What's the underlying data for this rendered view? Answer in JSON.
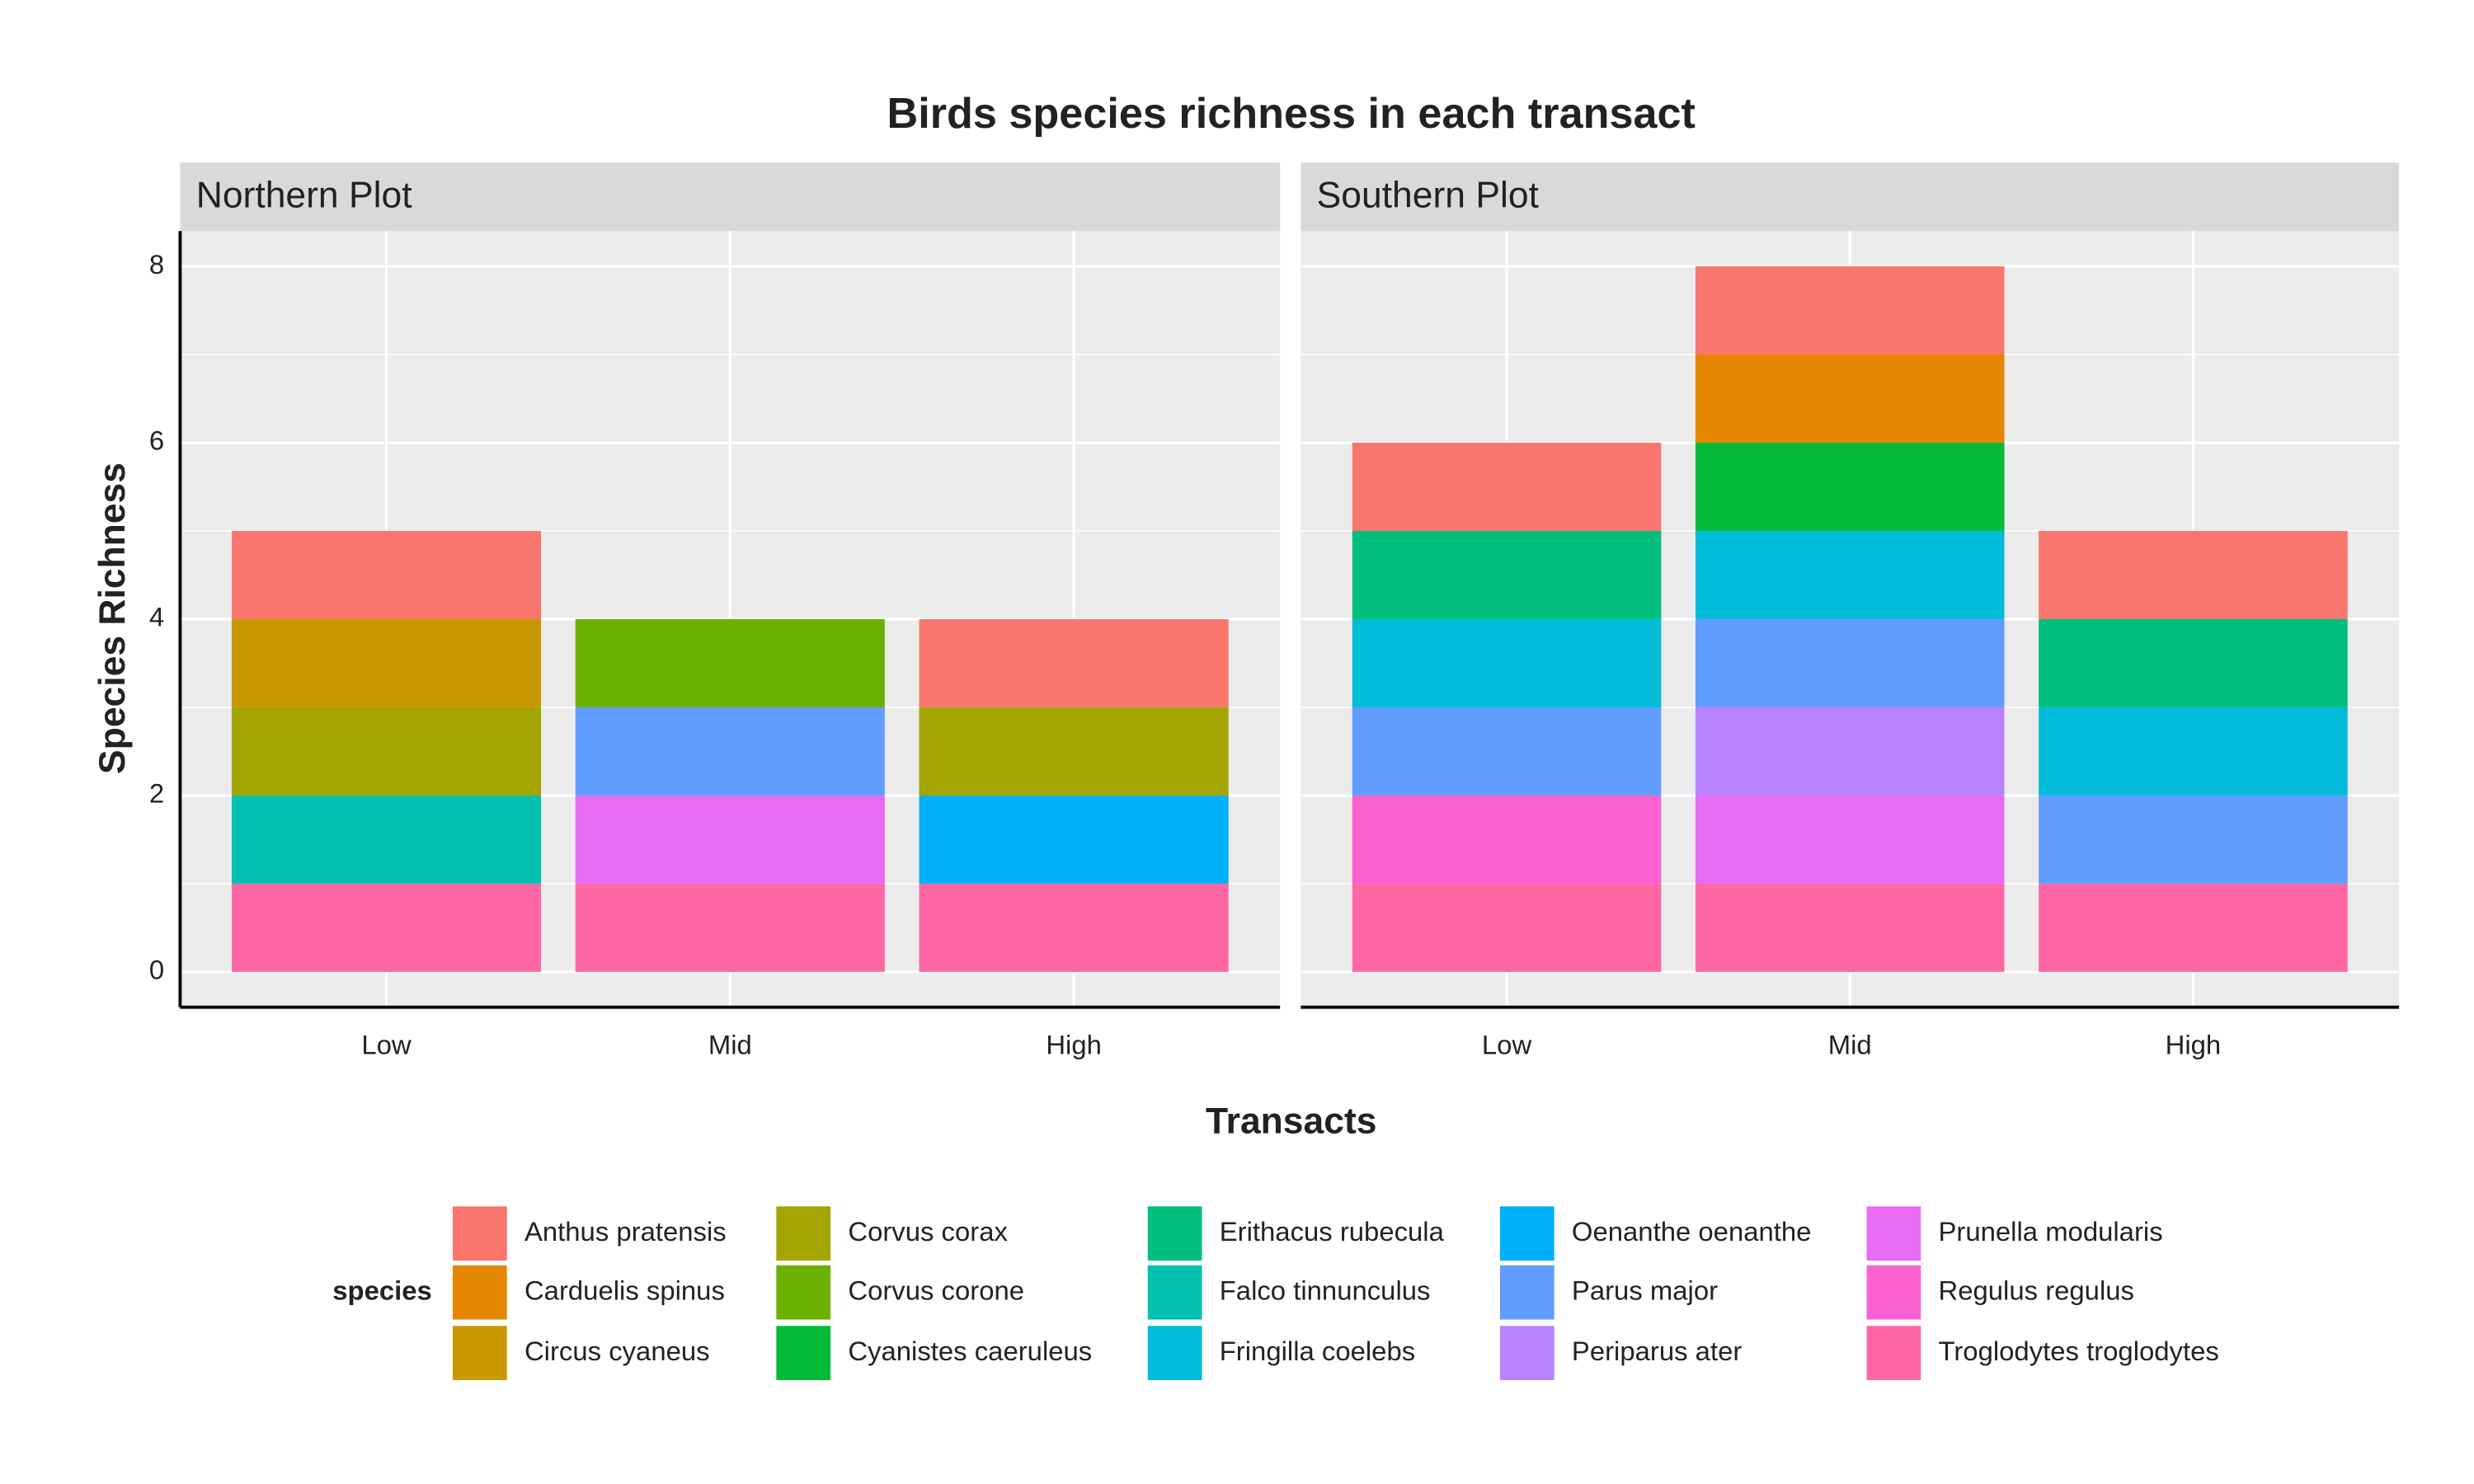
{
  "chart_data": {
    "type": "stacked-bar",
    "title": "Birds species richness in each transact",
    "x_label": "Transacts",
    "y_label": "Species Richness",
    "legend_title": "species",
    "panels": [
      "Northern Plot",
      "Southern Plot"
    ],
    "categories": [
      "Low",
      "Mid",
      "High"
    ],
    "ylim": [
      -0.4,
      8.4
    ],
    "yticks": [
      0,
      2,
      4,
      6,
      8
    ],
    "grid": true,
    "series": [
      {
        "name": "Anthus pratensis",
        "color": "#F8766D",
        "values": [
          [
            1,
            null,
            1
          ],
          [
            1,
            1,
            1
          ]
        ]
      },
      {
        "name": "Carduelis spinus",
        "color": "#E58700",
        "values": [
          [
            null,
            null,
            null
          ],
          [
            null,
            1,
            null
          ]
        ]
      },
      {
        "name": "Circus cyaneus",
        "color": "#C99800",
        "values": [
          [
            1,
            null,
            null
          ],
          [
            null,
            null,
            null
          ]
        ]
      },
      {
        "name": "Corvus corax",
        "color": "#A3A500",
        "values": [
          [
            1,
            null,
            1
          ],
          [
            null,
            null,
            null
          ]
        ]
      },
      {
        "name": "Corvus corone",
        "color": "#6BB100",
        "values": [
          [
            null,
            1,
            null
          ],
          [
            null,
            null,
            null
          ]
        ]
      },
      {
        "name": "Cyanistes caeruleus",
        "color": "#00BA38",
        "values": [
          [
            null,
            null,
            null
          ],
          [
            null,
            1,
            null
          ]
        ]
      },
      {
        "name": "Erithacus rubecula",
        "color": "#00BF7D",
        "values": [
          [
            null,
            null,
            null
          ],
          [
            1,
            null,
            1
          ]
        ]
      },
      {
        "name": "Falco tinnunculus",
        "color": "#00C0AF",
        "values": [
          [
            1,
            null,
            null
          ],
          [
            null,
            null,
            null
          ]
        ]
      },
      {
        "name": "Fringilla coelebs",
        "color": "#00BCD8",
        "values": [
          [
            null,
            null,
            null
          ],
          [
            1,
            1,
            1
          ]
        ]
      },
      {
        "name": "Oenanthe oenanthe",
        "color": "#00B0F6",
        "values": [
          [
            null,
            null,
            1
          ],
          [
            null,
            null,
            null
          ]
        ]
      },
      {
        "name": "Parus major",
        "color": "#619CFF",
        "values": [
          [
            null,
            1,
            null
          ],
          [
            1,
            1,
            1
          ]
        ]
      },
      {
        "name": "Periparus ater",
        "color": "#B983FF",
        "values": [
          [
            null,
            null,
            null
          ],
          [
            null,
            1,
            null
          ]
        ]
      },
      {
        "name": "Prunella modularis",
        "color": "#E76BF3",
        "values": [
          [
            null,
            1,
            null
          ],
          [
            null,
            1,
            null
          ]
        ]
      },
      {
        "name": "Regulus regulus",
        "color": "#FD61D1",
        "values": [
          [
            null,
            null,
            null
          ],
          [
            1,
            null,
            null
          ]
        ]
      },
      {
        "name": "Troglodytes troglodytes",
        "color": "#FF67A4",
        "values": [
          [
            1,
            1,
            1
          ],
          [
            1,
            1,
            1
          ]
        ]
      }
    ]
  }
}
